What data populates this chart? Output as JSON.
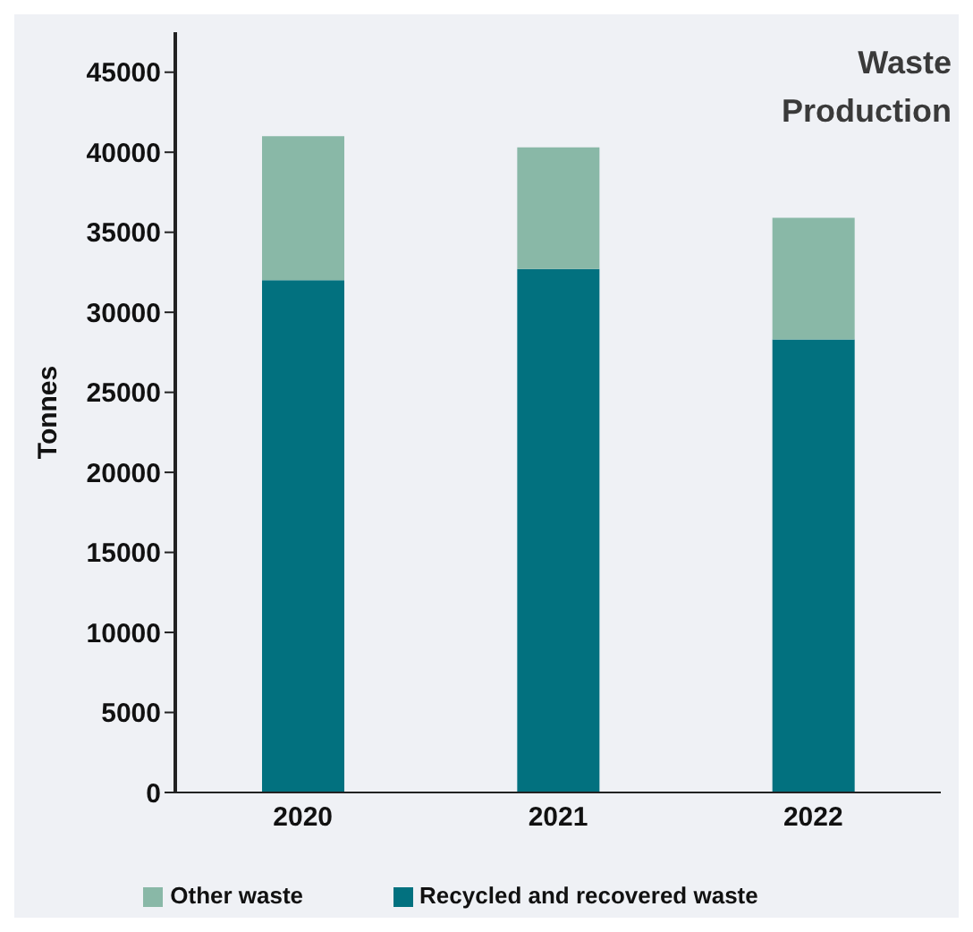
{
  "chart_data": {
    "type": "bar",
    "title": "Waste Production",
    "ylabel": "Tonnes",
    "categories": [
      "2020",
      "2021",
      "2022"
    ],
    "stacked": true,
    "series": [
      {
        "name": "Recycled and recovered waste",
        "color": "#02717f",
        "values": [
          32000,
          32700,
          28300
        ]
      },
      {
        "name": "Other waste",
        "color": "#89b8a7",
        "values": [
          9000,
          7600,
          7600
        ]
      }
    ],
    "ylim": [
      0,
      47500
    ],
    "yticks": [
      0,
      5000,
      10000,
      15000,
      20000,
      25000,
      30000,
      35000,
      40000,
      45000
    ],
    "grid": false,
    "legend": "bottom"
  }
}
